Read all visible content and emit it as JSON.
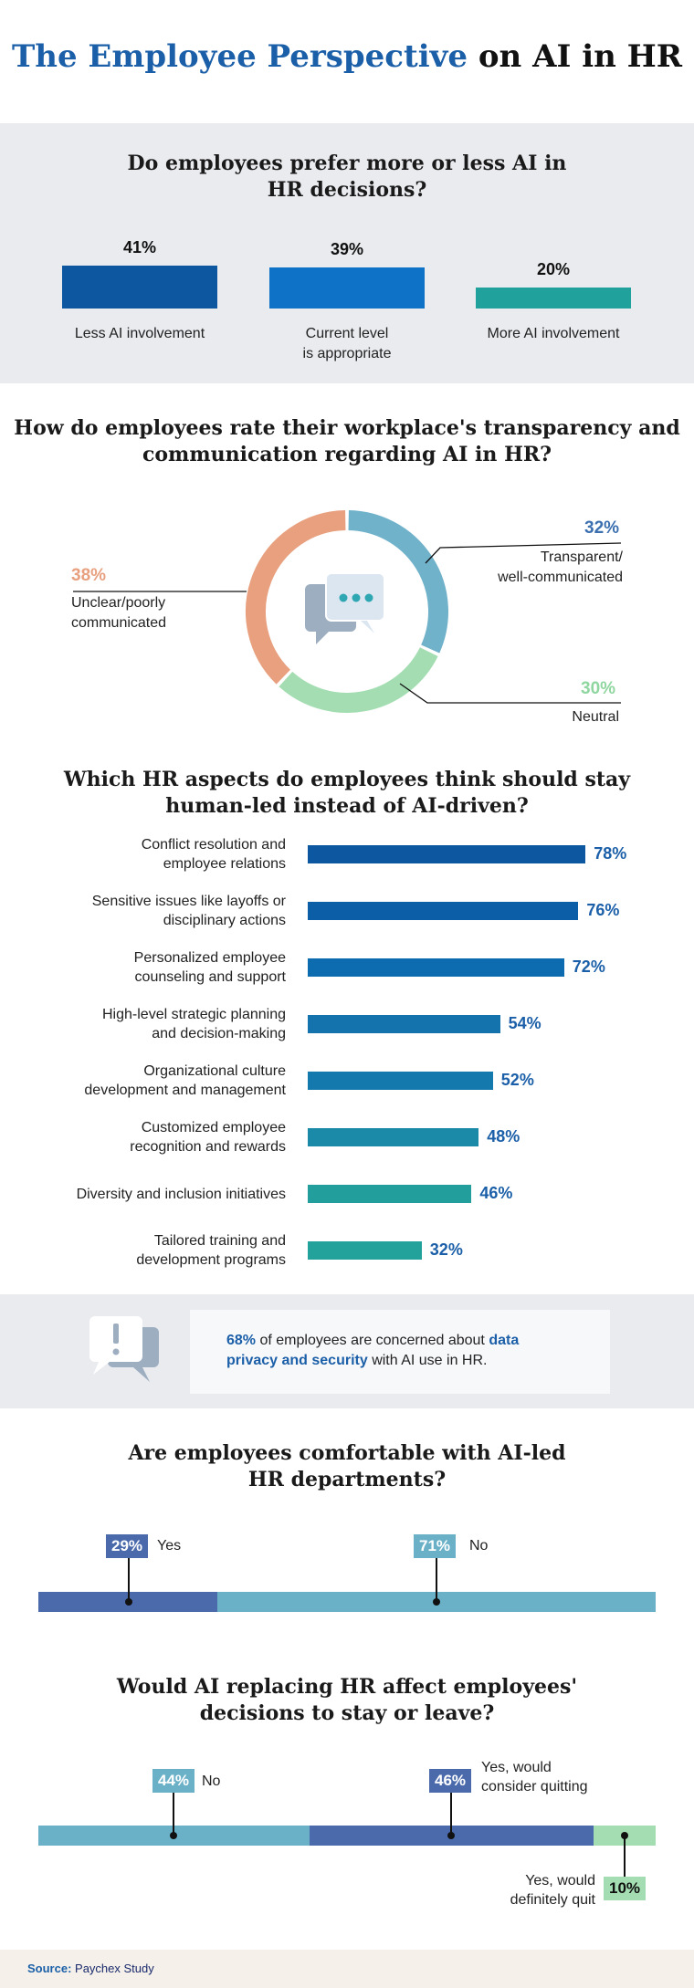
{
  "title": {
    "accent": "The Employee Perspective",
    "rest": "on AI in HR"
  },
  "section1": {
    "question_line1": "Do employees prefer more or less AI in",
    "question_line2": "HR decisions?",
    "chart_data": {
      "type": "bar",
      "categories": [
        "Less AI involvement",
        "Current level is appropriate",
        "More AI involvement"
      ],
      "values": [
        41,
        39,
        20
      ],
      "value_labels": [
        "41%",
        "39%",
        "20%"
      ],
      "unit": "%",
      "colors": [
        "#0d57a0",
        "#0e73c7",
        "#21a19c"
      ]
    },
    "category_lines": [
      [
        "Less AI involvement"
      ],
      [
        "Current level",
        "is appropriate"
      ],
      [
        "More AI involvement"
      ]
    ]
  },
  "section2": {
    "question_line1": "How do employees rate their workplace's transparency and",
    "question_line2": "communication regarding AI in HR?",
    "chart_data": {
      "type": "pie",
      "donut": true,
      "labels": [
        "Transparent/ well-communicated",
        "Neutral",
        "Unclear/poorly communicated"
      ],
      "values": [
        32,
        30,
        38
      ],
      "value_labels": [
        "32%",
        "30%",
        "38%"
      ],
      "colors": [
        "#6fb2c9",
        "#a3ddb1",
        "#e8a07f"
      ]
    },
    "label_lines": {
      "transparent": [
        "Transparent/",
        "well-communicated"
      ],
      "neutral": [
        "Neutral"
      ],
      "unclear": [
        "Unclear/poorly",
        "communicated"
      ]
    },
    "center_icon": "chat-bubbles-icon"
  },
  "section3": {
    "question_line1": "Which HR aspects do employees think should stay",
    "question_line2": "human-led instead of AI-driven?",
    "chart_data": {
      "type": "bar",
      "orientation": "horizontal",
      "categories": [
        "Conflict resolution and employee relations",
        "Sensitive issues like layoffs or disciplinary actions",
        "Personalized employee counseling and support",
        "High-level strategic planning and decision-making",
        "Organizational culture development and management",
        "Customized employee recognition and rewards",
        "Diversity and inclusion initiatives",
        "Tailored training and development programs"
      ],
      "values": [
        78,
        76,
        72,
        54,
        52,
        48,
        46,
        32
      ],
      "value_labels": [
        "78%",
        "76%",
        "72%",
        "54%",
        "52%",
        "48%",
        "46%",
        "32%"
      ],
      "colors": [
        "#0d57a0",
        "#0c5fa7",
        "#0d6bb0",
        "#1473ad",
        "#1479ad",
        "#1a8aa8",
        "#229f9d",
        "#22a29b"
      ],
      "value_colors": [
        "#1b5fa8",
        "#1b5fa8",
        "#1b5fa8",
        "#1b5fa8",
        "#1b5fa8",
        "#1b5fa8",
        "#1b5fa8",
        "#1b5fa8"
      ]
    },
    "category_lines": [
      [
        "Conflict resolution and",
        "employee relations"
      ],
      [
        "Sensitive issues like layoffs or",
        "disciplinary actions"
      ],
      [
        "Personalized employee",
        "counseling and support"
      ],
      [
        "High-level strategic planning",
        "and decision-making"
      ],
      [
        "Organizational culture",
        "development and management"
      ],
      [
        "Customized employee",
        "recognition and rewards"
      ],
      [
        "Diversity and inclusion initiatives"
      ],
      [
        "Tailored training and",
        "development programs"
      ]
    ]
  },
  "callout": {
    "icon": "alert-speech-bubble-icon",
    "pct": "68%",
    "text1": " of employees are concerned about ",
    "highlight": "data privacy and security",
    "text2": " with AI use in HR."
  },
  "section5": {
    "question_line1": "Are employees comfortable with AI-led",
    "question_line2": "HR departments?",
    "chart_data": {
      "type": "bar",
      "stacked": true,
      "categories": [
        "Yes",
        "No"
      ],
      "values": [
        29,
        71
      ],
      "value_labels": [
        "29%",
        "71%"
      ],
      "colors": [
        "#4b6aab",
        "#6ab1c8"
      ]
    }
  },
  "section6": {
    "question_line1": "Would AI replacing HR affect employees'",
    "question_line2": "decisions to stay or leave?",
    "chart_data": {
      "type": "bar",
      "stacked": true,
      "categories": [
        "No",
        "Yes, would consider quitting",
        "Yes, would definitely quit"
      ],
      "values": [
        44,
        46,
        10
      ],
      "value_labels": [
        "44%",
        "46%",
        "10%"
      ],
      "colors": [
        "#6ab1c8",
        "#4b6aab",
        "#a3ddb1"
      ]
    },
    "label_lines": {
      "no": [
        "No"
      ],
      "consider": [
        "Yes, would",
        "consider quitting"
      ],
      "definitely": [
        "Yes, would",
        "definitely quit"
      ]
    }
  },
  "source": {
    "label": "Source:",
    "text": " Paychex Study"
  },
  "colors": {
    "accent_blue": "#1b5fa8",
    "band_gray": "#e9ebef"
  }
}
